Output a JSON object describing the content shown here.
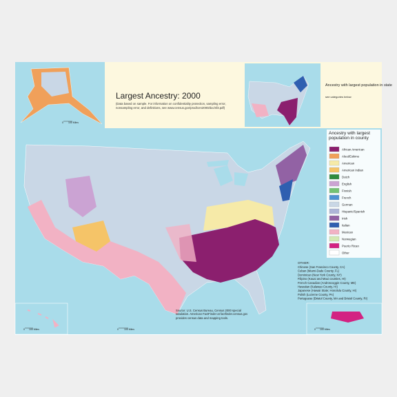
{
  "header": {
    "title": "Largest Ancestry: 2000",
    "note": "(Data based on sample. For information on confidentiality protection, sampling error, nonsampling error, and definitions, see www.census.gov/prod/cen2000/doc/sf3.pdf)"
  },
  "state_inset": {
    "title": "Ancestry with largest population in state",
    "subtitle": "see categories below"
  },
  "legend": {
    "title": "Ancestry with largest population in county",
    "items": [
      {
        "label": "African American",
        "color": "#8b1f6e"
      },
      {
        "label": "Aleut/Eskimo",
        "color": "#f0a05a"
      },
      {
        "label": "American",
        "color": "#f6eaa8"
      },
      {
        "label": "American Indian",
        "color": "#f5c468"
      },
      {
        "label": "Dutch",
        "color": "#2e8b3e"
      },
      {
        "label": "English",
        "color": "#cba3d3"
      },
      {
        "label": "Finnish",
        "color": "#74c274"
      },
      {
        "label": "French",
        "color": "#4f93d2"
      },
      {
        "label": "German",
        "color": "#c9d7e6"
      },
      {
        "label": "Hispanic/Spanish",
        "color": "#aeb6d8"
      },
      {
        "label": "Irish",
        "color": "#9262a4"
      },
      {
        "label": "Italian",
        "color": "#2f5fb0"
      },
      {
        "label": "Mexican",
        "color": "#f2b2c4"
      },
      {
        "label": "Norwegian",
        "color": "#d3e9b3"
      },
      {
        "label": "Puerto Rican",
        "color": "#d32282"
      },
      {
        "label": "Other",
        "color": "#ffffff"
      }
    ]
  },
  "other": {
    "title": "OTHER:",
    "lines": [
      "Chinese (San Francisco County, CA)",
      "Cuban (Miami-Dade County, FL)",
      "Dominican (New York County, NY)",
      "Filipino (Kauai and Maui counties, HI)",
      "French Canadian (Androscoggin County, ME)",
      "Hawaiian (Kalawao County, HI)",
      "Japanese (Hawaii State; Honolulu County, HI)",
      "Polish (Luzerne County, PA)",
      "Portuguese (Bristol County, MA and Bristol County, RI)"
    ]
  },
  "source": "Source: U.S. Census Bureau, Census 2000 special tabulation. American FactFinder at factfinder.census.gov provides census data and mapping tools.",
  "scale": {
    "zero": "0",
    "unit": "100 Miles"
  }
}
